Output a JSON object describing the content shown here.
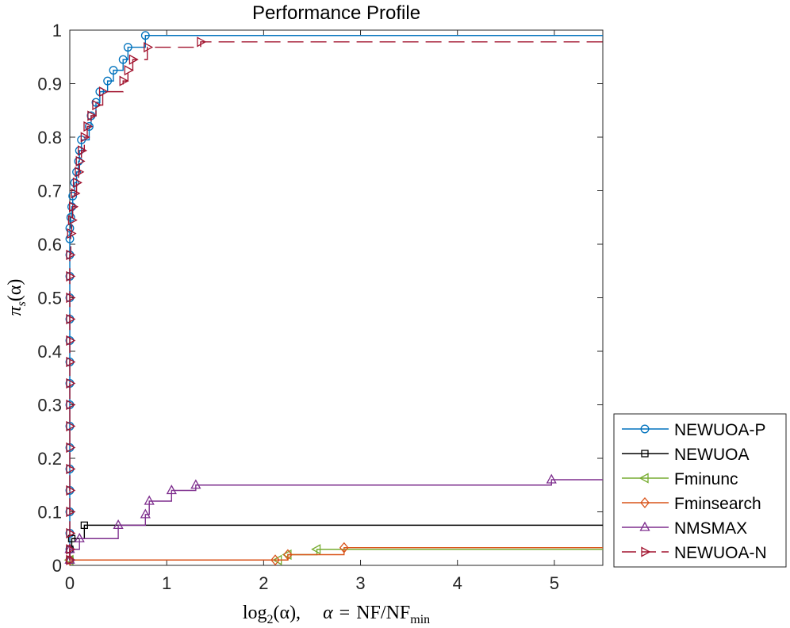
{
  "chart_data": {
    "type": "line",
    "subtype": "step",
    "title": "Performance Profile",
    "xlabel": "log2(α),    α = NF/NF_min",
    "xlabel_parts": {
      "fn": "log",
      "fn_sub": "2",
      "arg": "(α),",
      "alpha": "α",
      "eq": "=",
      "num": "NF",
      "slash": "/",
      "den": "NF",
      "den_sub": "min"
    },
    "ylabel": "π_s(α)",
    "ylabel_parts": {
      "sym": "π",
      "sub": "s",
      "arg": "(α)"
    },
    "xlim": [
      0,
      5.5
    ],
    "ylim": [
      0,
      1
    ],
    "xticks": [
      0,
      1,
      2,
      3,
      4,
      5
    ],
    "yticks": [
      0,
      0.1,
      0.2,
      0.3,
      0.4,
      0.5,
      0.6,
      0.7,
      0.8,
      0.9,
      1
    ],
    "xtick_labels": [
      "0",
      "1",
      "2",
      "3",
      "4",
      "5"
    ],
    "ytick_labels": [
      "0",
      "0.1",
      "0.2",
      "0.3",
      "0.4",
      "0.5",
      "0.6",
      "0.7",
      "0.8",
      "0.9",
      "1"
    ],
    "grid": false,
    "legend_position": "outside-bottom-right",
    "series": [
      {
        "name": "NEWUOA-P",
        "color": "#0072BD",
        "marker": "circle",
        "dash": "solid",
        "points": [
          [
            0,
            0.01
          ],
          [
            0,
            0.03
          ],
          [
            0,
            0.06
          ],
          [
            0,
            0.1
          ],
          [
            0,
            0.14
          ],
          [
            0,
            0.18
          ],
          [
            0,
            0.22
          ],
          [
            0,
            0.26
          ],
          [
            0,
            0.3
          ],
          [
            0,
            0.34
          ],
          [
            0,
            0.38
          ],
          [
            0,
            0.42
          ],
          [
            0,
            0.46
          ],
          [
            0,
            0.5
          ],
          [
            0,
            0.54
          ],
          [
            0,
            0.58
          ],
          [
            0,
            0.61
          ],
          [
            0,
            0.63
          ],
          [
            0.01,
            0.65
          ],
          [
            0.02,
            0.67
          ],
          [
            0.03,
            0.69
          ],
          [
            0.05,
            0.715
          ],
          [
            0.07,
            0.735
          ],
          [
            0.09,
            0.755
          ],
          [
            0.1,
            0.775
          ],
          [
            0.12,
            0.795
          ],
          [
            0.2,
            0.82
          ],
          [
            0.22,
            0.84
          ],
          [
            0.27,
            0.865
          ],
          [
            0.31,
            0.885
          ],
          [
            0.39,
            0.905
          ],
          [
            0.45,
            0.925
          ],
          [
            0.55,
            0.945
          ],
          [
            0.6,
            0.968
          ],
          [
            0.78,
            0.99
          ],
          [
            5.5,
            0.99
          ]
        ]
      },
      {
        "name": "NEWUOA",
        "color": "#000000",
        "marker": "square",
        "dash": "solid",
        "points": [
          [
            0,
            0.01
          ],
          [
            0,
            0.03
          ],
          [
            0.02,
            0.05
          ],
          [
            0.15,
            0.075
          ],
          [
            5.5,
            0.075
          ]
        ]
      },
      {
        "name": "Fminunc",
        "color": "#77AC30",
        "marker": "triangle-left",
        "dash": "solid",
        "points": [
          [
            0,
            0.01
          ],
          [
            2.15,
            0.01
          ],
          [
            2.25,
            0.02
          ],
          [
            2.55,
            0.03
          ],
          [
            5.5,
            0.03
          ]
        ]
      },
      {
        "name": "Fminsearch",
        "color": "#D95319",
        "marker": "diamond",
        "dash": "solid",
        "points": [
          [
            0,
            0.01
          ],
          [
            2.12,
            0.01
          ],
          [
            2.25,
            0.02
          ],
          [
            2.83,
            0.033
          ],
          [
            5.5,
            0.033
          ]
        ]
      },
      {
        "name": "NMSMAX",
        "color": "#7E2F8E",
        "marker": "triangle-up",
        "dash": "solid",
        "points": [
          [
            0,
            0.01
          ],
          [
            0,
            0.03
          ],
          [
            0.1,
            0.05
          ],
          [
            0.5,
            0.075
          ],
          [
            0.78,
            0.095
          ],
          [
            0.82,
            0.12
          ],
          [
            1.05,
            0.14
          ],
          [
            1.3,
            0.15
          ],
          [
            4.97,
            0.16
          ],
          [
            5.5,
            0.16
          ]
        ]
      },
      {
        "name": "NEWUOA-N",
        "color": "#A2142F",
        "marker": "triangle-right",
        "dash": "dashed",
        "points": [
          [
            0,
            0.01
          ],
          [
            0,
            0.03
          ],
          [
            0,
            0.06
          ],
          [
            0,
            0.1
          ],
          [
            0,
            0.14
          ],
          [
            0,
            0.18
          ],
          [
            0,
            0.22
          ],
          [
            0,
            0.26
          ],
          [
            0,
            0.3
          ],
          [
            0,
            0.34
          ],
          [
            0,
            0.38
          ],
          [
            0,
            0.42
          ],
          [
            0,
            0.46
          ],
          [
            0,
            0.5
          ],
          [
            0,
            0.54
          ],
          [
            0,
            0.58
          ],
          [
            0.01,
            0.62
          ],
          [
            0.02,
            0.645
          ],
          [
            0.03,
            0.67
          ],
          [
            0.05,
            0.695
          ],
          [
            0.07,
            0.715
          ],
          [
            0.09,
            0.735
          ],
          [
            0.1,
            0.755
          ],
          [
            0.12,
            0.775
          ],
          [
            0.15,
            0.8
          ],
          [
            0.18,
            0.82
          ],
          [
            0.22,
            0.84
          ],
          [
            0.27,
            0.86
          ],
          [
            0.34,
            0.885
          ],
          [
            0.55,
            0.905
          ],
          [
            0.6,
            0.925
          ],
          [
            0.65,
            0.945
          ],
          [
            0.8,
            0.968
          ],
          [
            1.35,
            0.978
          ],
          [
            5.5,
            0.978
          ]
        ]
      }
    ]
  }
}
